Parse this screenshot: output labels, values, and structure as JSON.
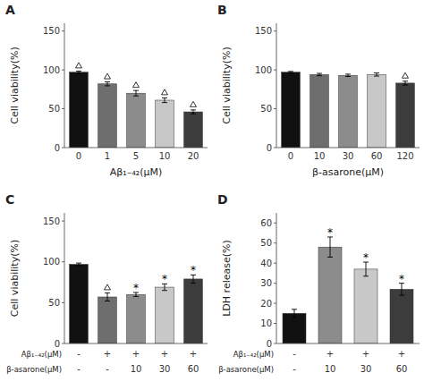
{
  "chart_data": [
    {
      "type": "bar",
      "title": "A",
      "categories": [
        "0",
        "1",
        "5",
        "10",
        "20"
      ],
      "values": [
        97,
        82,
        70,
        61,
        46
      ],
      "errors": [
        1.5,
        2.5,
        3.5,
        3.0,
        2.5
      ],
      "colors": [
        "#111111",
        "#6e6e6e",
        "#8c8c8c",
        "#c8c8c8",
        "#3c3c3c"
      ],
      "ylabel": "Cell viability(%)",
      "xlabel": "Aβ₁₋₄₂(μM)",
      "ylim": [
        0,
        160
      ],
      "yticks": [
        0,
        50,
        100,
        150
      ],
      "grid": false,
      "markers": [
        "triangle",
        "triangle",
        "triangle",
        "triangle",
        "triangle"
      ]
    },
    {
      "type": "bar",
      "title": "B",
      "categories": [
        "0",
        "10",
        "30",
        "60",
        "120"
      ],
      "values": [
        97,
        94,
        93,
        94,
        83
      ],
      "errors": [
        1.0,
        1.5,
        1.5,
        2.0,
        2.5
      ],
      "colors": [
        "#111111",
        "#6e6e6e",
        "#8c8c8c",
        "#c8c8c8",
        "#3c3c3c"
      ],
      "ylabel": "Cell viability(%)",
      "xlabel": "β-asarone(μM)",
      "ylim": [
        0,
        160
      ],
      "yticks": [
        0,
        50,
        100,
        150
      ],
      "grid": false,
      "markers": [
        null,
        null,
        null,
        null,
        "triangle"
      ]
    },
    {
      "type": "bar",
      "title": "C",
      "categories": [
        null,
        null,
        null,
        null,
        null
      ],
      "category_rows": [
        {
          "name": "Aβ₁₋₄₂(μM)",
          "labels": [
            "-",
            "+",
            "+",
            "+",
            "+"
          ]
        },
        {
          "name": "β-asarone(μM)",
          "labels": [
            "-",
            "-",
            "10",
            "30",
            "60"
          ]
        }
      ],
      "values": [
        97,
        57,
        60,
        69,
        79
      ],
      "errors": [
        1.5,
        5.0,
        2.5,
        4.0,
        5.0
      ],
      "colors": [
        "#111111",
        "#6e6e6e",
        "#8c8c8c",
        "#c8c8c8",
        "#3c3c3c"
      ],
      "ylabel": "Cell viability(%)",
      "ylim": [
        0,
        160
      ],
      "yticks": [
        0,
        50,
        100,
        150
      ],
      "grid": false,
      "markers": [
        null,
        "triangle",
        null,
        null,
        null
      ],
      "annotations": [
        null,
        null,
        "*",
        "*",
        "*"
      ]
    },
    {
      "type": "bar",
      "title": "D",
      "categories": [
        null,
        null,
        null,
        null
      ],
      "category_rows": [
        {
          "name": "Aβ₁₋₄₂(μM)",
          "labels": [
            "-",
            "+",
            "+",
            "+"
          ]
        },
        {
          "name": "β-asarone(μM)",
          "labels": [
            "-",
            "10",
            "30",
            "60"
          ]
        }
      ],
      "values": [
        15,
        48,
        37,
        27
      ],
      "errors": [
        2.0,
        5.0,
        3.5,
        3.0
      ],
      "colors": [
        "#111111",
        "#8c8c8c",
        "#c8c8c8",
        "#3c3c3c"
      ],
      "ylabel": "LDH release(%)",
      "ylim": [
        0,
        65
      ],
      "yticks": [
        0,
        10,
        20,
        30,
        40,
        50,
        60
      ],
      "grid": false,
      "annotations": [
        null,
        "*",
        "*",
        "*"
      ]
    }
  ]
}
